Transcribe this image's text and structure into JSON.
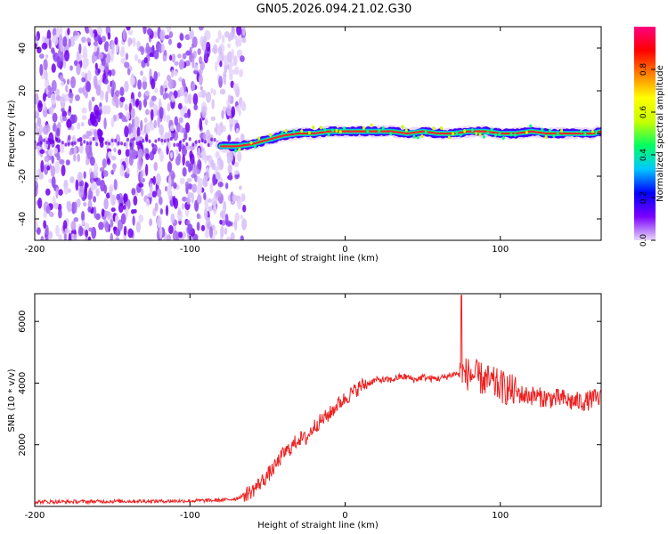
{
  "title": "GN05.2026.094.21.02.G30",
  "chart_data": [
    {
      "type": "heatmap",
      "name": "spectrogram",
      "xlabel": "Height of straight line (km)",
      "ylabel": "Frequency (Hz)",
      "xlim": [
        -200,
        165
      ],
      "ylim": [
        -50,
        50
      ],
      "xticks": [
        -200,
        -100,
        0,
        100
      ],
      "yticks": [
        -40,
        -20,
        0,
        20,
        40
      ],
      "colorbar": {
        "label": "Normalized spectral amplitude",
        "range": [
          0,
          1
        ],
        "ticks": [
          "0.0",
          "0.2",
          "0.4",
          "0.6",
          "0.8"
        ],
        "stops": [
          "#e8d8f8",
          "#7a00ff",
          "#0000ff",
          "#00c8ff",
          "#00ff60",
          "#c8ff00",
          "#ffff00",
          "#ff8000",
          "#ff0000",
          "#ff0080"
        ]
      },
      "noise_region_x": [
        -200,
        -65
      ],
      "signal_band": {
        "x": [
          -80,
          -70,
          -60,
          -50,
          -40,
          -30,
          -20,
          -10,
          0,
          10,
          20,
          30,
          40,
          50,
          60,
          70,
          80,
          90,
          100,
          110,
          120,
          130,
          140,
          150,
          160,
          165
        ],
        "freq": [
          -6,
          -6,
          -5,
          -3,
          -1,
          0,
          0,
          1,
          1,
          1,
          1,
          1,
          0,
          1,
          0,
          0,
          1,
          1,
          0,
          0,
          1,
          0,
          0,
          0,
          0,
          1
        ]
      }
    },
    {
      "type": "line",
      "name": "snr",
      "xlabel": "Height of straight line (km)",
      "ylabel": "SNR (10 * v/v)",
      "xlim": [
        -200,
        165
      ],
      "ylim": [
        0,
        6900
      ],
      "xticks": [
        -200,
        -100,
        0,
        100
      ],
      "yticks": [
        2000,
        4000,
        6000
      ],
      "color": "#ee2222",
      "series": [
        {
          "name": "SNR",
          "x": [
            -200,
            -180,
            -160,
            -140,
            -120,
            -100,
            -80,
            -70,
            -60,
            -55,
            -50,
            -45,
            -40,
            -35,
            -30,
            -25,
            -20,
            -15,
            -10,
            -5,
            0,
            5,
            10,
            15,
            20,
            25,
            30,
            35,
            40,
            45,
            50,
            55,
            60,
            65,
            70,
            75,
            80,
            85,
            90,
            95,
            100,
            105,
            110,
            115,
            120,
            125,
            130,
            135,
            140,
            145,
            150,
            155,
            160,
            165
          ],
          "y": [
            150,
            150,
            160,
            170,
            170,
            180,
            200,
            250,
            500,
            750,
            1000,
            1300,
            1700,
            1900,
            2200,
            2200,
            2600,
            2800,
            3000,
            3300,
            3500,
            3700,
            3900,
            4000,
            4100,
            4100,
            4100,
            4200,
            4200,
            4100,
            4200,
            4150,
            4150,
            4200,
            4300,
            4300,
            4300,
            4200,
            4100,
            4000,
            3900,
            3800,
            3700,
            3600,
            3600,
            3550,
            3500,
            3500,
            3500,
            3400,
            3400,
            3400,
            3500,
            3500
          ]
        }
      ]
    }
  ]
}
